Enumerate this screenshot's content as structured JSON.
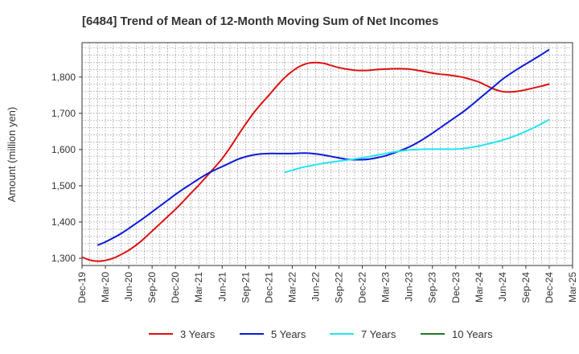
{
  "chart_data": {
    "type": "line",
    "title": "[6484]  Trend of Mean of 12-Month Moving Sum of Net Incomes",
    "xlabel": "",
    "ylabel": "Amount (million yen)",
    "ylim": [
      1280,
      1895
    ],
    "yticks": [
      1300,
      1400,
      1500,
      1600,
      1700,
      1800
    ],
    "ytick_labels": [
      "1,300",
      "1,400",
      "1,500",
      "1,600",
      "1,700",
      "1,800"
    ],
    "x_range": [
      "2019-12",
      "2025-03"
    ],
    "xtick_labels": [
      "Dec-19",
      "Mar-20",
      "Jun-20",
      "Sep-20",
      "Dec-20",
      "Mar-21",
      "Jun-21",
      "Sep-21",
      "Dec-21",
      "Mar-22",
      "Jun-22",
      "Sep-22",
      "Dec-22",
      "Mar-23",
      "Jun-23",
      "Sep-23",
      "Dec-23",
      "Mar-24",
      "Jun-24",
      "Sep-24",
      "Dec-24",
      "Mar-25"
    ],
    "grid": true,
    "legend_position": "bottom",
    "series": [
      {
        "name": "3 Years",
        "color": "#dd1111",
        "points": [
          [
            "2019-12",
            1303
          ],
          [
            "2020-01",
            1295
          ],
          [
            "2020-02",
            1292
          ],
          [
            "2020-03",
            1294
          ],
          [
            "2020-04",
            1300
          ],
          [
            "2020-05",
            1310
          ],
          [
            "2020-06",
            1322
          ],
          [
            "2020-07",
            1337
          ],
          [
            "2020-08",
            1355
          ],
          [
            "2020-09",
            1375
          ],
          [
            "2020-10",
            1395
          ],
          [
            "2020-11",
            1415
          ],
          [
            "2020-12",
            1435
          ],
          [
            "2020-01",
            null
          ],
          [
            "2021-01",
            1457
          ],
          [
            "2021-02",
            1480
          ],
          [
            "2021-03",
            1502
          ],
          [
            "2021-04",
            1526
          ],
          [
            "2021-05",
            1550
          ],
          [
            "2021-06",
            1575
          ],
          [
            "2021-07",
            1605
          ],
          [
            "2021-08",
            1638
          ],
          [
            "2021-09",
            1670
          ],
          [
            "2021-10",
            1700
          ],
          [
            "2021-11",
            1726
          ],
          [
            "2021-12",
            1750
          ],
          [
            "2022-01",
            1775
          ],
          [
            "2022-02",
            1798
          ],
          [
            "2022-03",
            1816
          ],
          [
            "2022-04",
            1830
          ],
          [
            "2022-05",
            1838
          ],
          [
            "2022-06",
            1840
          ],
          [
            "2022-07",
            1838
          ],
          [
            "2022-08",
            1832
          ],
          [
            "2022-09",
            1826
          ],
          [
            "2022-10",
            1822
          ],
          [
            "2022-11",
            1819
          ],
          [
            "2022-12",
            1818
          ],
          [
            "2023-01",
            1819
          ],
          [
            "2023-02",
            1821
          ],
          [
            "2023-03",
            1822
          ],
          [
            "2023-04",
            1823
          ],
          [
            "2023-05",
            1823
          ],
          [
            "2023-06",
            1822
          ],
          [
            "2023-07",
            1819
          ],
          [
            "2023-08",
            1815
          ],
          [
            "2023-09",
            1811
          ],
          [
            "2023-10",
            1808
          ],
          [
            "2023-11",
            1806
          ],
          [
            "2023-12",
            1803
          ],
          [
            "2024-01",
            1799
          ],
          [
            "2024-02",
            1793
          ],
          [
            "2024-03",
            1786
          ],
          [
            "2024-04",
            1776
          ],
          [
            "2024-05",
            1766
          ],
          [
            "2024-06",
            1760
          ],
          [
            "2024-07",
            1759
          ],
          [
            "2024-08",
            1761
          ],
          [
            "2024-09",
            1765
          ],
          [
            "2024-10",
            1770
          ],
          [
            "2024-11",
            1775
          ],
          [
            "2024-12",
            1781
          ]
        ]
      },
      {
        "name": "5 Years",
        "color": "#0a1ad6",
        "points": [
          [
            "2020-02",
            1336
          ],
          [
            "2020-03",
            1345
          ],
          [
            "2020-04",
            1356
          ],
          [
            "2020-05",
            1368
          ],
          [
            "2020-06",
            1382
          ],
          [
            "2020-07",
            1397
          ],
          [
            "2020-08",
            1412
          ],
          [
            "2020-09",
            1428
          ],
          [
            "2020-10",
            1444
          ],
          [
            "2020-11",
            1460
          ],
          [
            "2020-12",
            1476
          ],
          [
            "2021-01",
            1491
          ],
          [
            "2021-02",
            1505
          ],
          [
            "2021-03",
            1519
          ],
          [
            "2021-04",
            1532
          ],
          [
            "2021-05",
            1543
          ],
          [
            "2021-06",
            1553
          ],
          [
            "2021-07",
            1563
          ],
          [
            "2021-08",
            1573
          ],
          [
            "2021-09",
            1580
          ],
          [
            "2021-10",
            1585
          ],
          [
            "2021-11",
            1588
          ],
          [
            "2021-12",
            1589
          ],
          [
            "2022-01",
            1589
          ],
          [
            "2022-02",
            1589
          ],
          [
            "2022-03",
            1589
          ],
          [
            "2022-04",
            1590
          ],
          [
            "2022-05",
            1590
          ],
          [
            "2022-06",
            1588
          ],
          [
            "2022-07",
            1585
          ],
          [
            "2022-08",
            1581
          ],
          [
            "2022-09",
            1577
          ],
          [
            "2022-10",
            1573
          ],
          [
            "2022-11",
            1572
          ],
          [
            "2022-12",
            1572
          ],
          [
            "2023-01",
            1574
          ],
          [
            "2023-02",
            1578
          ],
          [
            "2023-03",
            1583
          ],
          [
            "2023-04",
            1590
          ],
          [
            "2023-05",
            1598
          ],
          [
            "2023-06",
            1607
          ],
          [
            "2023-07",
            1618
          ],
          [
            "2023-08",
            1631
          ],
          [
            "2023-09",
            1645
          ],
          [
            "2023-10",
            1660
          ],
          [
            "2023-11",
            1675
          ],
          [
            "2023-12",
            1690
          ],
          [
            "2024-01",
            1705
          ],
          [
            "2024-02",
            1722
          ],
          [
            "2024-03",
            1740
          ],
          [
            "2024-04",
            1758
          ],
          [
            "2024-05",
            1776
          ],
          [
            "2024-06",
            1794
          ],
          [
            "2024-07",
            1809
          ],
          [
            "2024-08",
            1823
          ],
          [
            "2024-09",
            1836
          ],
          [
            "2024-10",
            1849
          ],
          [
            "2024-11",
            1862
          ],
          [
            "2024-12",
            1876
          ]
        ]
      },
      {
        "name": "7 Years",
        "color": "#22e5ee",
        "points": [
          [
            "2022-02",
            1537
          ],
          [
            "2022-03",
            1543
          ],
          [
            "2022-04",
            1549
          ],
          [
            "2022-05",
            1554
          ],
          [
            "2022-06",
            1558
          ],
          [
            "2022-07",
            1562
          ],
          [
            "2022-08",
            1565
          ],
          [
            "2022-09",
            1568
          ],
          [
            "2022-10",
            1571
          ],
          [
            "2022-11",
            1574
          ],
          [
            "2022-12",
            1577
          ],
          [
            "2023-01",
            1581
          ],
          [
            "2023-02",
            1585
          ],
          [
            "2023-03",
            1589
          ],
          [
            "2023-04",
            1593
          ],
          [
            "2023-05",
            1596
          ],
          [
            "2023-06",
            1599
          ],
          [
            "2023-07",
            1600
          ],
          [
            "2023-08",
            1601
          ],
          [
            "2023-09",
            1601
          ],
          [
            "2023-10",
            1601
          ],
          [
            "2023-11",
            1601
          ],
          [
            "2023-12",
            1601
          ],
          [
            "2024-01",
            1603
          ],
          [
            "2024-02",
            1606
          ],
          [
            "2024-03",
            1610
          ],
          [
            "2024-04",
            1615
          ],
          [
            "2024-05",
            1620
          ],
          [
            "2024-06",
            1626
          ],
          [
            "2024-07",
            1633
          ],
          [
            "2024-08",
            1641
          ],
          [
            "2024-09",
            1650
          ],
          [
            "2024-10",
            1660
          ],
          [
            "2024-11",
            1671
          ],
          [
            "2024-12",
            1683
          ]
        ]
      },
      {
        "name": "10 Years",
        "color": "#1f7a1f",
        "points": []
      }
    ]
  }
}
